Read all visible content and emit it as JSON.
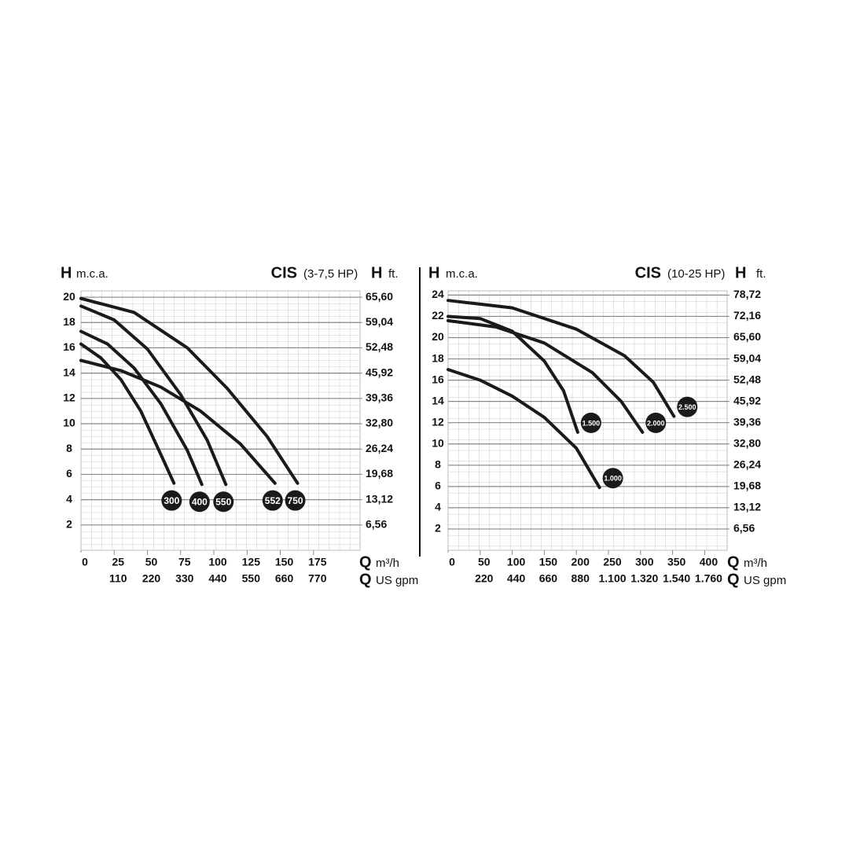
{
  "chart_data": [
    {
      "type": "line",
      "title": "CIS",
      "subtitle": "(3-7,5 HP)",
      "y_symbol": "H",
      "y_label": "m.c.a.",
      "y2_symbol": "H",
      "y2_label": "ft.",
      "x_symbol": "Q",
      "x_label": "m³/h",
      "x2_symbol": "Q",
      "x2_label": "US gpm",
      "xlim": [
        0,
        210
      ],
      "xticks": [
        0,
        25,
        50,
        75,
        100,
        125,
        150,
        175
      ],
      "x2lim": [
        0,
        924
      ],
      "x2ticks": [
        110,
        220,
        330,
        440,
        550,
        660,
        770
      ],
      "ylim": [
        0,
        20.5
      ],
      "yticks": [
        2,
        4,
        6,
        8,
        10,
        12,
        14,
        16,
        18,
        20
      ],
      "y2lim": [
        0,
        67.24
      ],
      "y2ticks": [
        {
          "value": 6.56,
          "label": "6,56"
        },
        {
          "value": 13.12,
          "label": "13,12"
        },
        {
          "value": 19.68,
          "label": "19,68"
        },
        {
          "value": 26.24,
          "label": "26,24"
        },
        {
          "value": 32.8,
          "label": "32,80"
        },
        {
          "value": 39.36,
          "label": "39,36"
        },
        {
          "value": 45.92,
          "label": "45,92"
        },
        {
          "value": 52.48,
          "label": "52,48"
        },
        {
          "value": 59.04,
          "label": "59,04"
        },
        {
          "value": 65.6,
          "label": "65,60"
        }
      ],
      "grid": true,
      "series": [
        {
          "name": "300",
          "color": "#1a1a1a",
          "x": [
            0,
            15,
            30,
            45,
            60,
            70
          ],
          "values": [
            16.3,
            15.2,
            13.5,
            11,
            7.6,
            5.3
          ]
        },
        {
          "name": "400",
          "color": "#1a1a1a",
          "x": [
            0,
            20,
            40,
            60,
            80,
            91
          ],
          "values": [
            17.3,
            16.3,
            14.4,
            11.6,
            7.9,
            5.2
          ]
        },
        {
          "name": "550",
          "color": "#1a1a1a",
          "x": [
            0,
            25,
            50,
            75,
            95,
            109
          ],
          "values": [
            19.3,
            18.2,
            15.9,
            12.3,
            8.7,
            5.2
          ]
        },
        {
          "name": "552",
          "color": "#1a1a1a",
          "x": [
            0,
            30,
            60,
            90,
            120,
            146
          ],
          "values": [
            15.0,
            14.2,
            12.9,
            11.0,
            8.4,
            5.3
          ]
        },
        {
          "name": "750",
          "color": "#1a1a1a",
          "x": [
            0,
            40,
            80,
            110,
            140,
            163
          ],
          "values": [
            19.9,
            18.8,
            16.0,
            12.8,
            9.0,
            5.3
          ]
        }
      ]
    },
    {
      "type": "line",
      "title": "CIS",
      "subtitle": "(10-25 HP)",
      "y_symbol": "H",
      "y_label": "m.c.a.",
      "y2_symbol": "H",
      "y2_label": "ft.",
      "x_symbol": "Q",
      "x_label": "m³/h",
      "x2_symbol": "Q",
      "x2_label": "US gpm",
      "xlim": [
        0,
        435
      ],
      "xticks": [
        0,
        50,
        100,
        150,
        200,
        250,
        300,
        350,
        400
      ],
      "x2lim": [
        0,
        1914
      ],
      "x2ticks": [
        220,
        440,
        660,
        880,
        {
          "value": 1100,
          "label": "1.100"
        },
        {
          "value": 1320,
          "label": "1.320"
        },
        {
          "value": 1540,
          "label": "1.540"
        },
        {
          "value": 1760,
          "label": "1.760"
        }
      ],
      "ylim": [
        0,
        24.4
      ],
      "yticks": [
        2,
        4,
        6,
        8,
        10,
        12,
        14,
        16,
        18,
        20,
        22,
        24
      ],
      "y2lim": [
        0,
        80.03
      ],
      "y2ticks": [
        {
          "value": 6.56,
          "label": "6,56"
        },
        {
          "value": 13.12,
          "label": "13,12"
        },
        {
          "value": 19.68,
          "label": "19,68"
        },
        {
          "value": 26.24,
          "label": "26,24"
        },
        {
          "value": 32.8,
          "label": "32,80"
        },
        {
          "value": 39.36,
          "label": "39,36"
        },
        {
          "value": 45.92,
          "label": "45,92"
        },
        {
          "value": 52.48,
          "label": "52,48"
        },
        {
          "value": 59.04,
          "label": "59,04"
        },
        {
          "value": 65.6,
          "label": "65,60"
        },
        {
          "value": 72.16,
          "label": "72,16"
        },
        {
          "value": 78.72,
          "label": "78,72"
        }
      ],
      "grid": true,
      "series": [
        {
          "name": "1.000",
          "color": "#1a1a1a",
          "x": [
            0,
            50,
            100,
            150,
            200,
            236
          ],
          "values": [
            17.0,
            16.0,
            14.5,
            12.5,
            9.6,
            5.9
          ]
        },
        {
          "name": "1.500",
          "color": "#1a1a1a",
          "x": [
            0,
            50,
            100,
            150,
            180,
            202
          ],
          "values": [
            22.0,
            21.8,
            20.6,
            17.8,
            15.0,
            11.1
          ]
        },
        {
          "name": "2.000",
          "color": "#1a1a1a",
          "x": [
            0,
            75,
            150,
            225,
            270,
            303
          ],
          "values": [
            21.6,
            21.0,
            19.5,
            16.7,
            14.0,
            11.1
          ]
        },
        {
          "name": "2.500",
          "color": "#1a1a1a",
          "x": [
            0,
            100,
            200,
            275,
            320,
            352
          ],
          "values": [
            23.5,
            22.8,
            20.8,
            18.3,
            15.8,
            12.6
          ]
        }
      ]
    }
  ]
}
